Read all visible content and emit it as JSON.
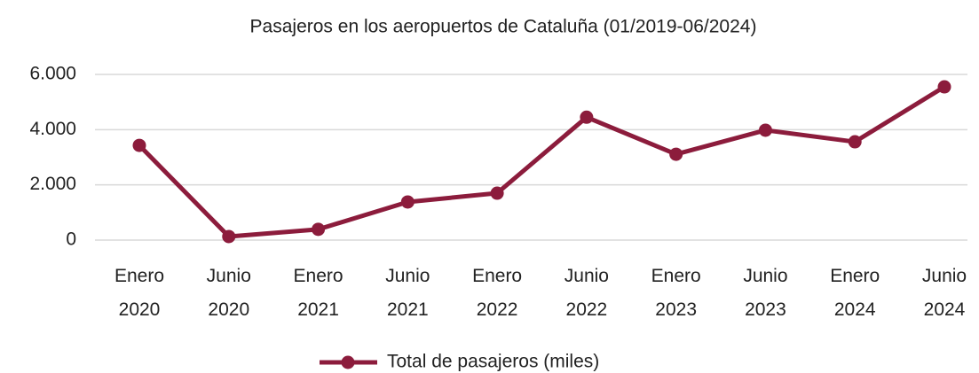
{
  "chart_data": {
    "type": "line",
    "title": "Pasajeros en los aeropuertos de Cataluña (01/2019-06/2024)",
    "categories": [
      "Enero 2020",
      "Junio 2020",
      "Enero 2021",
      "Junio 2021",
      "Enero 2022",
      "Junio 2022",
      "Enero 2023",
      "Junio 2023",
      "Enero 2024",
      "Junio 2024"
    ],
    "series": [
      {
        "name": "Total de pasajeros (miles)",
        "color": "#8c1c3c",
        "values": [
          3430,
          130,
          390,
          1380,
          1700,
          4450,
          3110,
          3980,
          3560,
          5550
        ]
      }
    ],
    "ylim": [
      0,
      6000
    ],
    "yticks": [
      0,
      {
        "value": 2000,
        "label": "2.000"
      },
      {
        "value": 4000,
        "label": "4.000"
      },
      {
        "value": 6000,
        "label": "6.000"
      }
    ],
    "grid": true,
    "legend": "bottom"
  }
}
